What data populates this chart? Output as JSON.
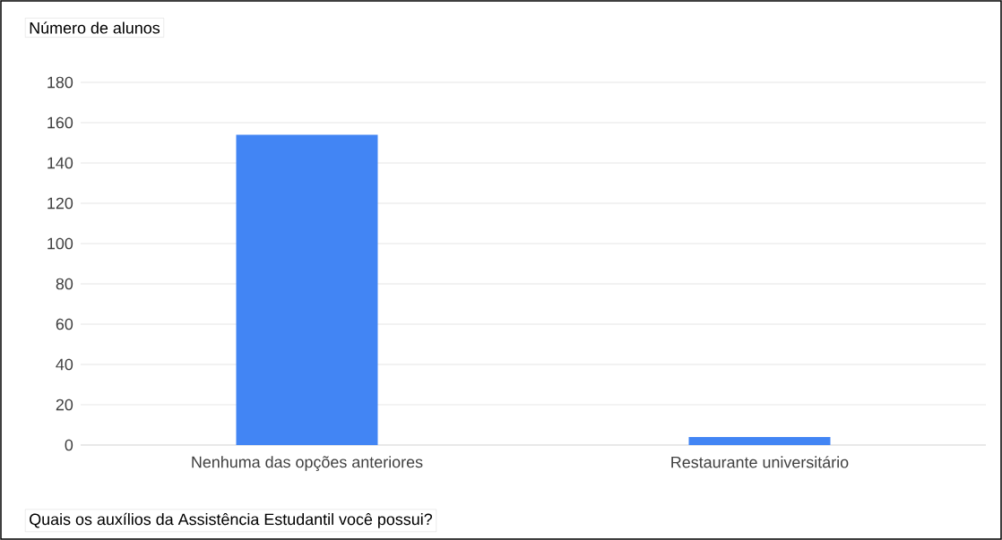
{
  "chart_data": {
    "type": "bar",
    "ylabel": "Número de alunos",
    "xlabel": "Quais os auxílios da Assistência Estudantil você possui?",
    "categories": [
      "Nenhuma das opções anteriores",
      "Restaurante universitário"
    ],
    "values": [
      154,
      4
    ],
    "color": "#4285f4",
    "ylim": [
      0,
      180
    ],
    "yticks": [
      0,
      20,
      40,
      60,
      80,
      100,
      120,
      140,
      160,
      180
    ],
    "grid": "y"
  }
}
